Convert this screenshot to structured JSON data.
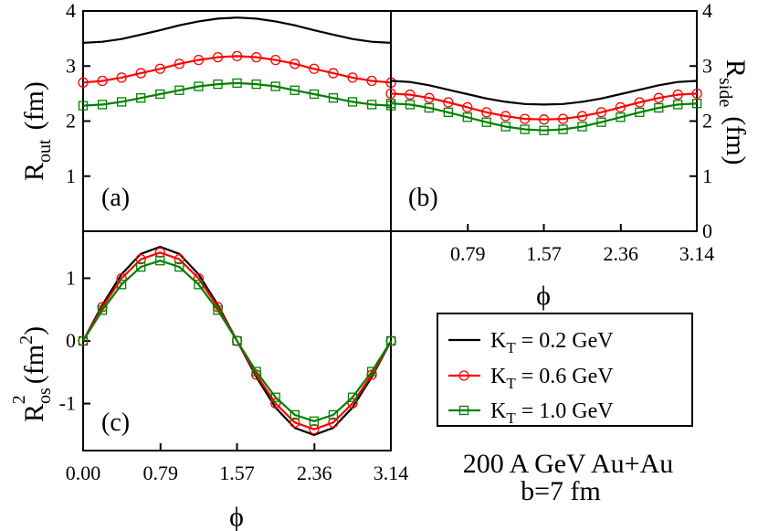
{
  "chart_data": [
    {
      "panel_label": "(a)",
      "type": "line",
      "x": [
        0.0,
        0.1963,
        0.3927,
        0.589,
        0.7854,
        0.9817,
        1.1781,
        1.3744,
        1.5708,
        1.7671,
        1.9635,
        2.1598,
        2.3562,
        2.5525,
        2.7489,
        2.9452,
        3.1416
      ],
      "series": [
        {
          "name": "K_T = 0.2 GeV",
          "values": [
            3.42,
            3.44,
            3.49,
            3.57,
            3.65,
            3.74,
            3.81,
            3.86,
            3.88,
            3.86,
            3.81,
            3.74,
            3.65,
            3.57,
            3.49,
            3.44,
            3.42
          ]
        },
        {
          "name": "K_T = 0.6 GeV",
          "values": [
            2.7,
            2.73,
            2.79,
            2.87,
            2.95,
            3.04,
            3.11,
            3.16,
            3.18,
            3.16,
            3.11,
            3.04,
            2.95,
            2.87,
            2.79,
            2.73,
            2.7
          ]
        },
        {
          "name": "K_T = 1.0 GeV",
          "values": [
            2.28,
            2.3,
            2.35,
            2.42,
            2.49,
            2.56,
            2.63,
            2.67,
            2.69,
            2.67,
            2.63,
            2.56,
            2.49,
            2.42,
            2.35,
            2.3,
            2.28
          ]
        }
      ],
      "ylabel_main": "R",
      "ylabel_sub": "out",
      "ylabel_unit": "(fm)",
      "xlim": [
        0,
        3.14
      ],
      "ylim": [
        0,
        4
      ],
      "yticks": [
        "1",
        "2",
        "3",
        "4"
      ]
    },
    {
      "panel_label": "(b)",
      "type": "line",
      "x": [
        0.0,
        0.1963,
        0.3927,
        0.589,
        0.7854,
        0.9817,
        1.1781,
        1.3744,
        1.5708,
        1.7671,
        1.9635,
        2.1598,
        2.3562,
        2.5525,
        2.7489,
        2.9452,
        3.1416
      ],
      "series": [
        {
          "name": "K_T = 0.2 GeV",
          "values": [
            2.73,
            2.71,
            2.65,
            2.57,
            2.49,
            2.41,
            2.35,
            2.31,
            2.3,
            2.31,
            2.35,
            2.41,
            2.49,
            2.57,
            2.65,
            2.71,
            2.73
          ]
        },
        {
          "name": "K_T = 0.6 GeV",
          "values": [
            2.5,
            2.48,
            2.42,
            2.34,
            2.25,
            2.16,
            2.09,
            2.04,
            2.03,
            2.04,
            2.09,
            2.16,
            2.25,
            2.34,
            2.42,
            2.48,
            2.5
          ]
        },
        {
          "name": "K_T = 1.0 GeV",
          "values": [
            2.32,
            2.3,
            2.24,
            2.16,
            2.07,
            1.98,
            1.9,
            1.85,
            1.83,
            1.85,
            1.9,
            1.98,
            2.07,
            2.16,
            2.24,
            2.3,
            2.32
          ]
        }
      ],
      "ylabel_main": "R",
      "ylabel_sub": "side",
      "ylabel_unit": "(fm)",
      "xlabel": "ϕ",
      "xlim": [
        0,
        3.14
      ],
      "ylim": [
        0,
        4
      ],
      "xticks": [
        "0.79",
        "1.57",
        "2.36",
        "3.14"
      ],
      "yticks": [
        "0",
        "1",
        "2",
        "3",
        "4"
      ]
    },
    {
      "panel_label": "(c)",
      "type": "line",
      "x": [
        0.0,
        0.1963,
        0.3927,
        0.589,
        0.7854,
        0.9817,
        1.1781,
        1.3744,
        1.5708,
        1.7671,
        1.9635,
        2.1598,
        2.3562,
        2.5525,
        2.7489,
        2.9452,
        3.1416
      ],
      "series": [
        {
          "name": "K_T = 0.2 GeV",
          "values": [
            0.0,
            0.575,
            1.063,
            1.389,
            1.5,
            1.389,
            1.063,
            0.575,
            0.0,
            -0.575,
            -1.063,
            -1.389,
            -1.5,
            -1.389,
            -1.063,
            -0.575,
            0.0
          ]
        },
        {
          "name": "K_T = 0.6 GeV",
          "values": [
            0.0,
            0.54,
            0.997,
            1.303,
            1.41,
            1.303,
            0.997,
            0.54,
            0.0,
            -0.54,
            -0.997,
            -1.303,
            -1.41,
            -1.303,
            -0.997,
            -0.54,
            0.0
          ]
        },
        {
          "name": "K_T = 1.0 GeV",
          "values": [
            0.0,
            0.49,
            0.9,
            1.18,
            1.28,
            1.18,
            0.9,
            0.49,
            0.0,
            -0.49,
            -0.9,
            -1.18,
            -1.28,
            -1.18,
            -0.9,
            -0.49,
            0.0
          ]
        }
      ],
      "ylabel_main": "R",
      "ylabel_sub": "os",
      "ylabel_sup": "2",
      "ylabel_unit": "(fm",
      "ylabel_unit_sup": "2",
      "ylabel_unit_close": ")",
      "xlabel": "ϕ",
      "xlim": [
        0,
        3.14
      ],
      "ylim": [
        -1.75,
        1.75
      ],
      "xticks": [
        "0.00",
        "0.79",
        "1.57",
        "2.36",
        "3.14"
      ],
      "yticks": [
        "-1",
        "0",
        "1"
      ]
    }
  ],
  "legend": {
    "placement": "bottom-right",
    "entries": [
      {
        "main": "K",
        "sub": "T",
        "rest": " = 0.2 GeV",
        "color": "#000000",
        "marker": "none"
      },
      {
        "main": "K",
        "sub": "T",
        "rest": " = 0.6 GeV",
        "color": "#ff0000",
        "marker": "circle"
      },
      {
        "main": "K",
        "sub": "T",
        "rest": " = 1.0 GeV",
        "color": "#008000",
        "marker": "square"
      }
    ]
  },
  "annotation": {
    "line1": "200 A GeV Au+Au",
    "line2": "b=7 fm"
  },
  "colors": {
    "series": [
      "#000000",
      "#ff0000",
      "#008000"
    ]
  }
}
